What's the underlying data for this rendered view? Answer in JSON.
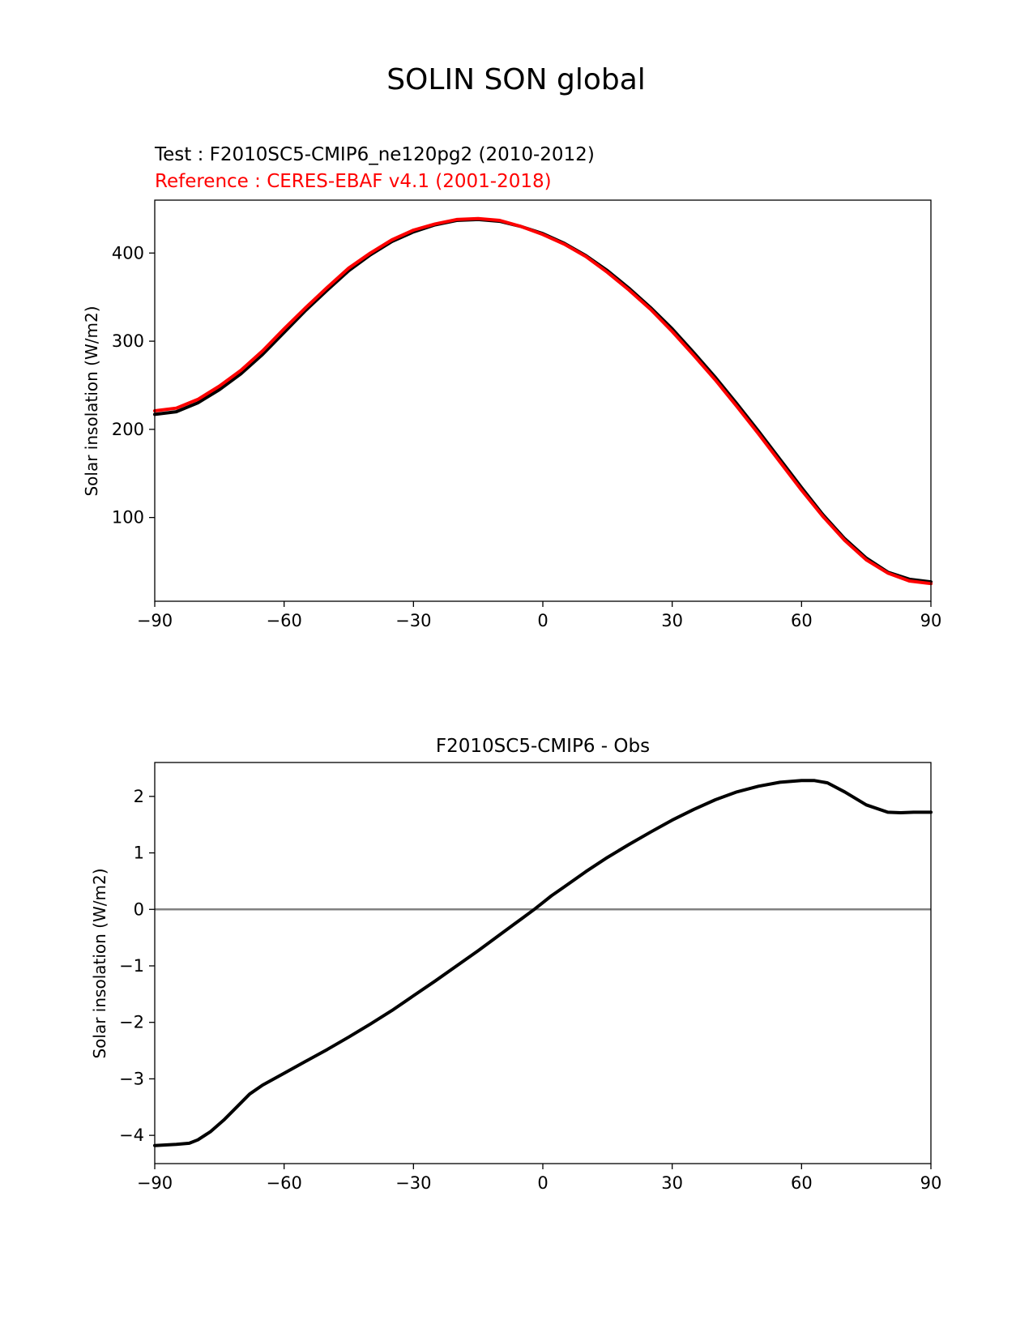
{
  "figure": {
    "title": "SOLIN SON global"
  },
  "chart_data": [
    {
      "type": "line",
      "test_label": "Test : F2010SC5-CMIP6_ne120pg2 (2010-2012)",
      "reference_label": "Reference : CERES-EBAF v4.1 (2001-2018)",
      "title": "",
      "xlabel": "",
      "ylabel": "Solar insolation (W/m2)",
      "xlim": [
        -90,
        90
      ],
      "ylim": [
        5,
        460
      ],
      "xticks": [
        -90,
        -60,
        -30,
        0,
        30,
        60,
        90
      ],
      "xtick_labels": [
        "−90",
        "−60",
        "−30",
        "0",
        "30",
        "60",
        "90"
      ],
      "yticks": [
        100,
        200,
        300,
        400
      ],
      "ytick_labels": [
        "100",
        "200",
        "300",
        "400"
      ],
      "grid": false,
      "x": [
        -90,
        -85,
        -80,
        -75,
        -70,
        -65,
        -60,
        -55,
        -50,
        -45,
        -40,
        -35,
        -30,
        -25,
        -20,
        -15,
        -10,
        -5,
        0,
        5,
        10,
        15,
        20,
        25,
        30,
        35,
        40,
        45,
        50,
        55,
        60,
        65,
        70,
        75,
        80,
        85,
        90
      ],
      "series": [
        {
          "color": "#000000",
          "values": [
            217,
            220,
            230,
            245,
            263,
            285,
            310,
            335,
            358,
            380,
            398,
            413,
            424,
            432,
            437,
            438,
            436,
            430,
            422,
            411,
            397,
            380,
            360,
            338,
            314,
            287,
            259,
            229,
            198,
            166,
            134,
            103,
            76,
            54,
            38,
            30,
            27
          ]
        },
        {
          "color": "#ff0000",
          "values": [
            221,
            224,
            234,
            249,
            267,
            289,
            314,
            338,
            361,
            383,
            400,
            415,
            426,
            433,
            438,
            439,
            437,
            430,
            421,
            410,
            396,
            378,
            358,
            336,
            311,
            284,
            256,
            226,
            195,
            163,
            131,
            101,
            74,
            52,
            37,
            28,
            25
          ]
        }
      ]
    },
    {
      "type": "line",
      "title": "F2010SC5-CMIP6 - Obs",
      "xlabel": "",
      "ylabel": "Solar insolation (W/m2)",
      "xlim": [
        -90,
        90
      ],
      "ylim": [
        -4.5,
        2.6
      ],
      "xticks": [
        -90,
        -60,
        -30,
        0,
        30,
        60,
        90
      ],
      "xtick_labels": [
        "−90",
        "−60",
        "−30",
        "0",
        "30",
        "60",
        "90"
      ],
      "yticks": [
        -4,
        -3,
        -2,
        -1,
        0,
        1,
        2
      ],
      "ytick_labels": [
        "−4",
        "−3",
        "−2",
        "−1",
        "0",
        "1",
        "2"
      ],
      "grid": false,
      "zero_line_color": "#808080",
      "x": [
        -90,
        -85,
        -82,
        -80,
        -77,
        -74,
        -71,
        -68,
        -65,
        -60,
        -55,
        -50,
        -45,
        -40,
        -35,
        -30,
        -25,
        -20,
        -15,
        -10,
        -5,
        -2,
        0,
        2,
        5,
        10,
        15,
        20,
        25,
        30,
        35,
        40,
        45,
        50,
        55,
        60,
        63,
        66,
        70,
        75,
        80,
        83,
        86,
        90
      ],
      "series": [
        {
          "color": "#000000",
          "values": [
            -4.18,
            -4.16,
            -4.14,
            -4.08,
            -3.93,
            -3.73,
            -3.5,
            -3.27,
            -3.11,
            -2.9,
            -2.69,
            -2.48,
            -2.26,
            -2.03,
            -1.79,
            -1.53,
            -1.27,
            -1.0,
            -0.73,
            -0.45,
            -0.17,
            0.0,
            0.12,
            0.24,
            0.4,
            0.67,
            0.92,
            1.15,
            1.37,
            1.58,
            1.77,
            1.94,
            2.08,
            2.18,
            2.25,
            2.28,
            2.28,
            2.24,
            2.08,
            1.85,
            1.72,
            1.71,
            1.72,
            1.72
          ]
        }
      ]
    }
  ]
}
